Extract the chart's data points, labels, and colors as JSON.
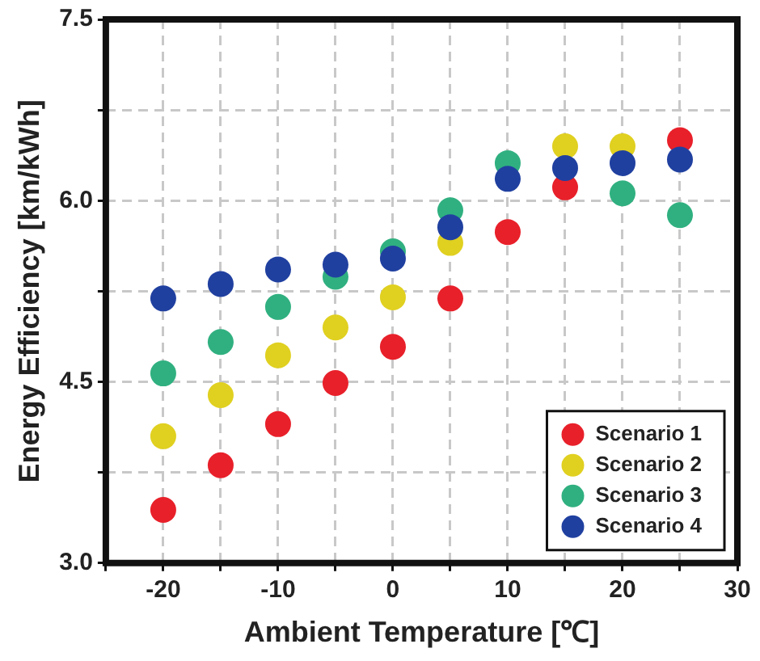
{
  "chart_data": {
    "type": "scatter",
    "xlabel": "Ambient Temperature [℃]",
    "ylabel": "Energy Efficiency [km/kWh]",
    "x": [
      -20,
      -15,
      -10,
      -5,
      0,
      5,
      10,
      15,
      20,
      25
    ],
    "series": [
      {
        "name": "Scenario 1",
        "color": "#e8202a",
        "values": [
          3.44,
          3.81,
          4.15,
          4.49,
          4.79,
          5.19,
          5.74,
          6.11,
          null,
          6.5
        ]
      },
      {
        "name": "Scenario 2",
        "color": "#e0d020",
        "values": [
          4.05,
          4.39,
          4.72,
          4.95,
          5.2,
          5.65,
          null,
          6.45,
          6.45,
          null
        ]
      },
      {
        "name": "Scenario 3",
        "color": "#30b080",
        "values": [
          4.57,
          4.83,
          5.12,
          5.37,
          5.58,
          5.92,
          6.31,
          null,
          6.06,
          5.88
        ]
      },
      {
        "name": "Scenario 4",
        "color": "#2040a0",
        "values": [
          5.19,
          5.31,
          5.43,
          5.47,
          5.52,
          5.78,
          6.18,
          6.27,
          6.31,
          6.34
        ]
      }
    ],
    "xlim": [
      -25,
      30
    ],
    "xticks": [
      {
        "value": -25,
        "label": null
      },
      -20,
      {
        "value": -15,
        "label": null
      },
      -10,
      {
        "value": -5,
        "label": null
      },
      0,
      {
        "value": 5,
        "label": null
      },
      10,
      {
        "value": 15,
        "label": null
      },
      20,
      {
        "value": 25,
        "label": null
      },
      30
    ],
    "ylim": [
      3.0,
      7.5
    ],
    "yticks": [
      {
        "value": 3,
        "label": "3.0"
      },
      {
        "value": 3.75,
        "label": null
      },
      4.5,
      {
        "value": 5.25,
        "label": null
      },
      {
        "value": 6,
        "label": "6.0"
      },
      {
        "value": 6.75,
        "label": null
      },
      7.5
    ],
    "grid": true,
    "legend": "bottom right",
    "marker": "circle"
  }
}
